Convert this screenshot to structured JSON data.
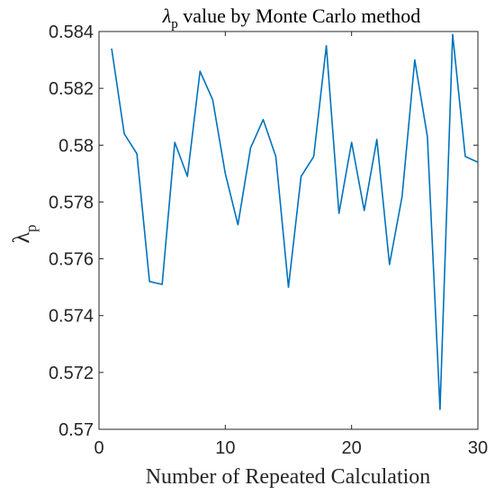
{
  "chart_data": {
    "type": "line",
    "title": {
      "prefix": "λ",
      "subscript": "p",
      "suffix": " value by Monte Carlo method"
    },
    "xlabel": "Number of Repeated Calculation",
    "ylabel": {
      "main": "λ",
      "subscript": "p"
    },
    "xlim": [
      0,
      30
    ],
    "ylim": [
      0.57,
      0.584
    ],
    "xticks": [
      0,
      10,
      20,
      30
    ],
    "xtick_labels": [
      "0",
      "10",
      "20",
      "30"
    ],
    "yticks": [
      0.57,
      0.572,
      0.574,
      0.576,
      0.578,
      0.58,
      0.582,
      0.584
    ],
    "ytick_labels": [
      "0.57",
      "0.572",
      "0.574",
      "0.576",
      "0.578",
      "0.58",
      "0.582",
      "0.584"
    ],
    "grid": false,
    "box": true,
    "series": [
      {
        "color": "#0072BD",
        "x": [
          1,
          2,
          3,
          4,
          5,
          6,
          7,
          8,
          9,
          10,
          11,
          12,
          13,
          14,
          15,
          16,
          17,
          18,
          19,
          20,
          21,
          22,
          23,
          24,
          25,
          26,
          27,
          28,
          29,
          30
        ],
        "y": [
          0.5834,
          0.5804,
          0.5797,
          0.5752,
          0.5751,
          0.5801,
          0.5789,
          0.5826,
          0.5816,
          0.579,
          0.5772,
          0.5799,
          0.5809,
          0.5796,
          0.575,
          0.5789,
          0.5796,
          0.5835,
          0.5776,
          0.5801,
          0.5777,
          0.5802,
          0.5758,
          0.5782,
          0.583,
          0.5803,
          0.5707,
          0.5839,
          0.5796,
          0.5794
        ]
      }
    ]
  }
}
